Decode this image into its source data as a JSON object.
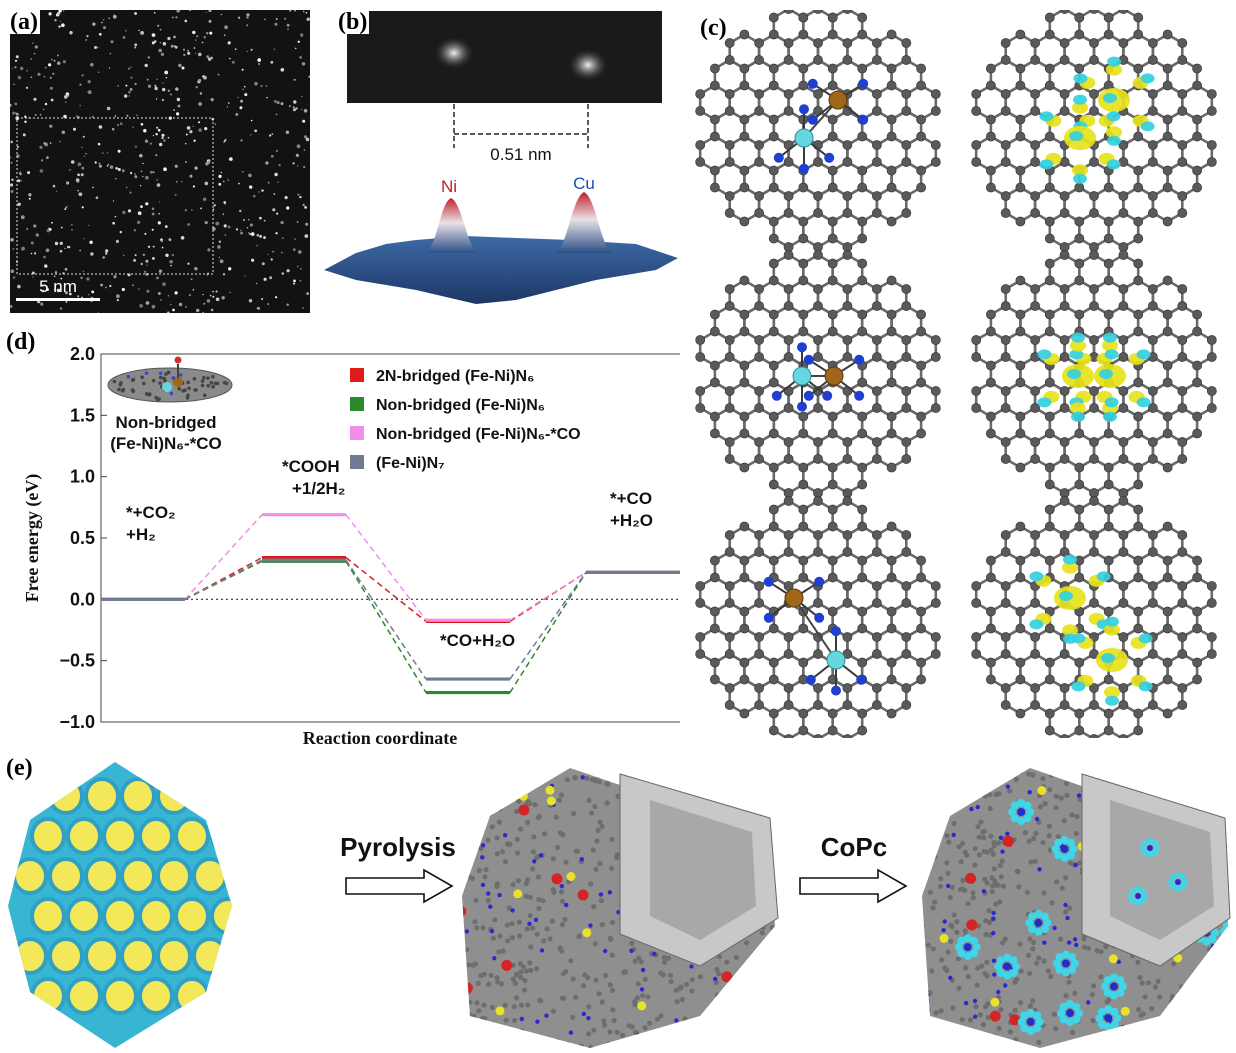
{
  "panels": {
    "a": {
      "label": "(a)",
      "scalebar": "5 nm"
    },
    "b": {
      "label": "(b)",
      "distance": "0.51 nm",
      "peak_left": "Ni",
      "peak_right": "Cu"
    },
    "c": {
      "label": "(c)"
    },
    "d": {
      "label": "(d)",
      "inset_caption_line1": "Non-bridged",
      "inset_caption_line2": "(Fe-Ni)N₆-*CO"
    },
    "e": {
      "label": "(e)",
      "arrow1": "Pyrolysis",
      "arrow2": "CoPc"
    }
  },
  "chart_data": {
    "type": "line",
    "subtype": "free-energy step diagram",
    "xlabel": "Reaction coordinate",
    "ylabel": "Free energy (eV)",
    "ylim": [
      -1.0,
      2.0
    ],
    "yticks": [
      "2.0",
      "1.5",
      "1.0",
      "0.5",
      "0.0",
      "−0.5",
      "−1.0"
    ],
    "steps": [
      {
        "label_lines": [
          "*+CO₂",
          "+H₂"
        ]
      },
      {
        "label_lines": [
          "*COOH",
          "+1/2H₂"
        ]
      },
      {
        "label_lines": [
          "*CO+H₂O"
        ]
      },
      {
        "label_lines": [
          "*+CO",
          "+H₂O"
        ]
      }
    ],
    "series": [
      {
        "name": "2N-bridged (Fe-Ni)N₆",
        "color": "#e0191b",
        "values": [
          0.0,
          0.34,
          -0.18,
          0.22
        ]
      },
      {
        "name": "Non-bridged (Fe-Ni)N₆",
        "color": "#2a8a2a",
        "values": [
          0.0,
          0.31,
          -0.76,
          0.22
        ]
      },
      {
        "name": "Non-bridged (Fe-Ni)N₆-*CO",
        "color": "#f08ee8",
        "values": [
          0.0,
          0.69,
          -0.17,
          0.22
        ]
      },
      {
        "name": "(Fe-Ni)N₇",
        "color": "#6e7b91",
        "values": [
          0.0,
          0.32,
          -0.65,
          0.22
        ]
      }
    ]
  },
  "colors": {
    "carbon": "#555555",
    "nitrogen": "#1f3fd1",
    "fe": "#a0671c",
    "ni": "#66d7e0",
    "iso_yellow": "#e7e21a",
    "iso_cyan": "#33d0e0"
  }
}
